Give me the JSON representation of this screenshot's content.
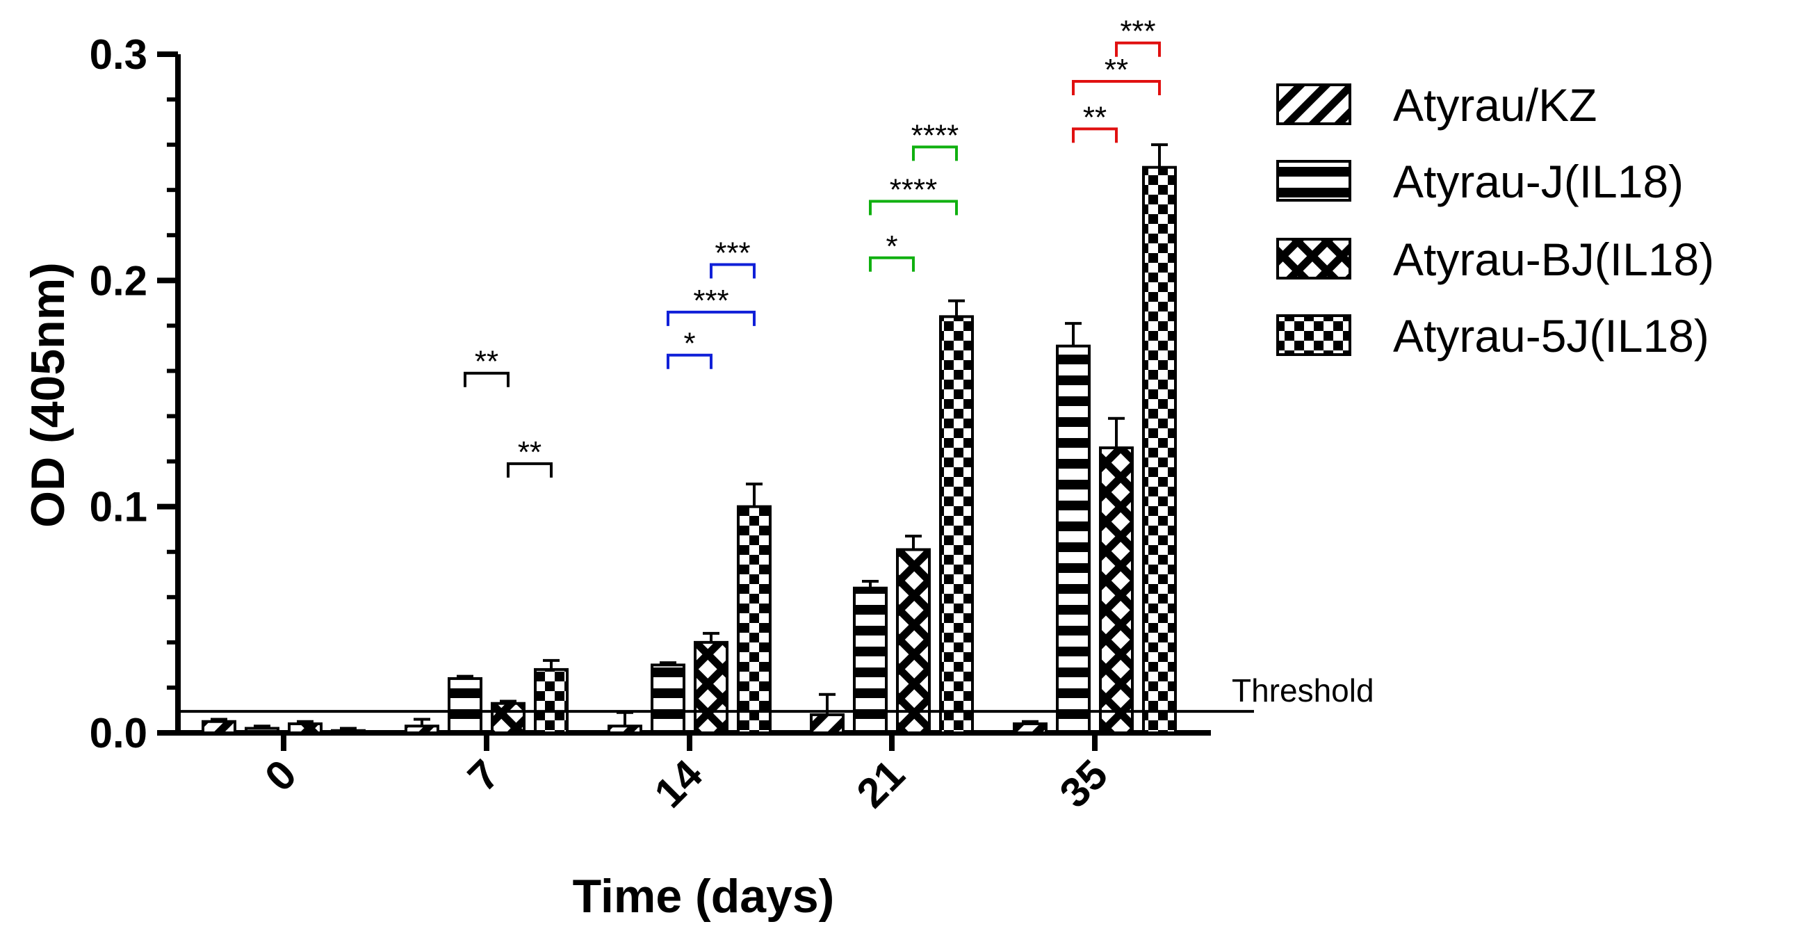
{
  "chart_data": {
    "type": "bar",
    "title": "",
    "xlabel": "Time (days)",
    "ylabel": "OD (405nm)",
    "ylim": [
      0,
      0.3
    ],
    "yticks": [
      0.0,
      0.1,
      0.2,
      0.3
    ],
    "ytick_labels": [
      "0.0",
      "0.1",
      "0.2",
      "0.3"
    ],
    "categories": [
      "0",
      "7",
      "14",
      "21",
      "35"
    ],
    "legend_position": "top-right",
    "series": [
      {
        "name": "Atyrau/KZ",
        "pattern": "diagonal",
        "values": [
          0.005,
          0.003,
          0.003,
          0.008,
          0.004
        ],
        "errors": [
          0.001,
          0.003,
          0.006,
          0.009,
          0.001
        ]
      },
      {
        "name": "Atyrau-J(IL18)",
        "pattern": "horizontal",
        "values": [
          0.002,
          0.024,
          0.03,
          0.064,
          0.171
        ],
        "errors": [
          0.001,
          0.001,
          0.001,
          0.003,
          0.01
        ]
      },
      {
        "name": "Atyrau-BJ(IL18)",
        "pattern": "crosshatch",
        "values": [
          0.004,
          0.013,
          0.04,
          0.081,
          0.126
        ],
        "errors": [
          0.001,
          0.001,
          0.004,
          0.006,
          0.013
        ]
      },
      {
        "name": "Atyrau-5J(IL18)",
        "pattern": "checker",
        "values": [
          0.001,
          0.028,
          0.1,
          0.184,
          0.25
        ],
        "errors": [
          0.001,
          0.004,
          0.01,
          0.007,
          0.01
        ]
      }
    ],
    "threshold": {
      "value": 0.0095,
      "label": "Threshold"
    },
    "significance": [
      {
        "category": "7",
        "from": 0,
        "to": 1,
        "label": "**",
        "y": 0.159,
        "color": "#000000"
      },
      {
        "category": "7",
        "from": 1,
        "to": 2,
        "label": "**",
        "y": 0.119,
        "color": "#000000"
      },
      {
        "category": "14",
        "from": 0,
        "to": 1,
        "label": "*",
        "y": 0.167,
        "color": "#1020d8"
      },
      {
        "category": "14",
        "from": 0,
        "to": 2,
        "label": "***",
        "y": 0.186,
        "color": "#1020d8"
      },
      {
        "category": "14",
        "from": 1,
        "to": 2,
        "label": "***",
        "y": 0.207,
        "color": "#1020d8"
      },
      {
        "category": "21",
        "from": 0,
        "to": 1,
        "label": "*",
        "y": 0.21,
        "color": "#10b010"
      },
      {
        "category": "21",
        "from": 0,
        "to": 2,
        "label": "****",
        "y": 0.235,
        "color": "#10b010"
      },
      {
        "category": "21",
        "from": 1,
        "to": 2,
        "label": "****",
        "y": 0.259,
        "color": "#10b010"
      },
      {
        "category": "35",
        "from": 0,
        "to": 1,
        "label": "**",
        "y": 0.267,
        "color": "#e01010"
      },
      {
        "category": "35",
        "from": 0,
        "to": 2,
        "label": "**",
        "y": 0.288,
        "color": "#e01010"
      },
      {
        "category": "35",
        "from": 1,
        "to": 2,
        "label": "***",
        "y": 0.305,
        "color": "#e01010"
      }
    ]
  }
}
